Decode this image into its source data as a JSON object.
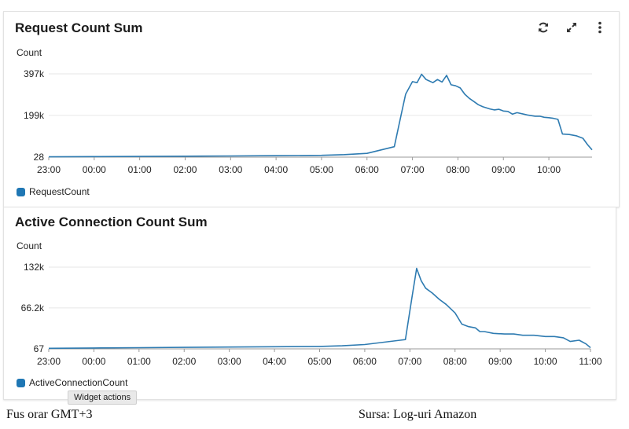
{
  "widgets": [
    {
      "title": "Request Count Sum",
      "actions": [
        {
          "name": "refresh",
          "icon": "refresh-icon"
        },
        {
          "name": "expand",
          "icon": "expand-icon"
        },
        {
          "name": "menu",
          "icon": "more-vertical-icon"
        }
      ]
    },
    {
      "title": "Active Connection Count Sum",
      "actions": []
    }
  ],
  "tooltip": "Widget actions",
  "captions": {
    "left": "Fus orar GMT+3",
    "right": "Sursa: Log-uri Amazon"
  },
  "colors": {
    "series": "#2e7bb1",
    "grid": "#e6e6e6",
    "axis": "#9a9a9a"
  },
  "chart_data": [
    {
      "type": "line",
      "title": "Request Count Sum",
      "ylabel": "Count",
      "ylim": [
        28,
        397000
      ],
      "yticks": [
        {
          "v": 397000,
          "label": "397k"
        },
        {
          "v": 199000,
          "label": "199k"
        },
        {
          "v": 28,
          "label": "28"
        }
      ],
      "xlim": [
        0,
        11.95
      ],
      "xticks": [
        "23:00",
        "00:00",
        "01:00",
        "02:00",
        "03:00",
        "04:00",
        "05:00",
        "06:00",
        "07:00",
        "08:00",
        "09:00",
        "10:00"
      ],
      "legend_position": "bottom-left",
      "grid": true,
      "series": [
        {
          "name": "RequestCount",
          "x": [
            0,
            1,
            2,
            3,
            4,
            5,
            6,
            6.5,
            7,
            7.6,
            7.75,
            7.85,
            8,
            8.1,
            8.2,
            8.3,
            8.35,
            8.45,
            8.55,
            8.65,
            8.75,
            8.85,
            8.95,
            9.05,
            9.15,
            9.25,
            9.35,
            9.45,
            9.55,
            9.7,
            9.8,
            9.9,
            10,
            10.1,
            10.2,
            10.3,
            10.45,
            10.55,
            10.7,
            10.8,
            10.9,
            11,
            11.1,
            11.2,
            11.3,
            11.45,
            11.6,
            11.75,
            11.85,
            11.95
          ],
          "y": [
            1500,
            2500,
            3500,
            4500,
            5500,
            7000,
            8500,
            12000,
            18000,
            50000,
            200000,
            300000,
            360000,
            355000,
            395000,
            370000,
            365000,
            355000,
            370000,
            358000,
            390000,
            345000,
            340000,
            330000,
            300000,
            280000,
            265000,
            250000,
            240000,
            230000,
            225000,
            228000,
            220000,
            218000,
            205000,
            212000,
            205000,
            200000,
            195000,
            195000,
            190000,
            188000,
            185000,
            180000,
            110000,
            108000,
            102000,
            90000,
            60000,
            35000
          ]
        }
      ]
    },
    {
      "type": "line",
      "title": "Active Connection Count Sum",
      "ylabel": "Count",
      "ylim": [
        67,
        132000
      ],
      "yticks": [
        {
          "v": 132000,
          "label": "132k"
        },
        {
          "v": 66200,
          "label": "66.2k"
        },
        {
          "v": 67,
          "label": "67"
        }
      ],
      "xlim": [
        0,
        12
      ],
      "xticks": [
        "23:00",
        "00:00",
        "01:00",
        "02:00",
        "03:00",
        "04:00",
        "05:00",
        "06:00",
        "07:00",
        "08:00",
        "09:00",
        "10:00",
        "11:00"
      ],
      "legend_position": "bottom-left",
      "grid": true,
      "series": [
        {
          "name": "ActiveConnectionCount",
          "x": [
            0,
            1,
            2,
            3,
            4,
            5,
            6,
            6.5,
            7,
            7.9,
            8.05,
            8.15,
            8.25,
            8.35,
            8.5,
            8.65,
            8.8,
            9.0,
            9.15,
            9.3,
            9.45,
            9.55,
            9.65,
            9.85,
            10.1,
            10.3,
            10.5,
            10.75,
            11.0,
            11.2,
            11.4,
            11.55,
            11.75,
            11.9,
            12.0
          ],
          "y": [
            1000,
            1500,
            2000,
            2500,
            3000,
            3500,
            4000,
            5000,
            7000,
            15000,
            85000,
            130000,
            110000,
            98000,
            90000,
            80000,
            72000,
            58000,
            40000,
            36000,
            34000,
            28000,
            28000,
            25000,
            24000,
            24000,
            22000,
            22000,
            20000,
            20000,
            18000,
            12000,
            14000,
            8000,
            2000
          ]
        }
      ]
    }
  ]
}
